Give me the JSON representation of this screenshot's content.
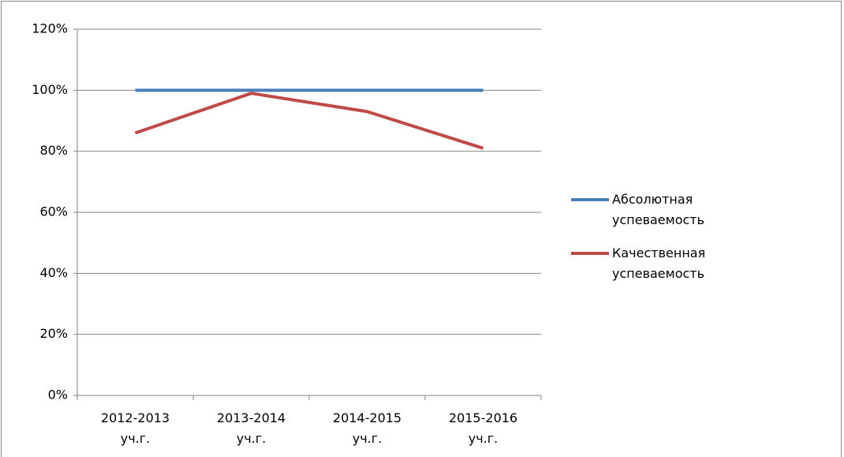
{
  "chart_data": {
    "type": "line",
    "categories": [
      "2012-2013 уч.г.",
      "2013-2014 уч.г.",
      "2014-2015 уч.г.",
      "2015-2016 уч.г."
    ],
    "series": [
      {
        "name": "Абсолютная успеваемость",
        "color": "#4a7ebb",
        "values": [
          100,
          100,
          100,
          100
        ]
      },
      {
        "name": "Качественная успеваемость",
        "color": "#be4b48",
        "values": [
          86,
          99,
          93,
          81
        ]
      }
    ],
    "ylim": [
      0,
      120
    ],
    "yticks": [
      {
        "value": 0,
        "label": "0%"
      },
      {
        "value": 20,
        "label": "20%"
      },
      {
        "value": 40,
        "label": "40%"
      },
      {
        "value": 60,
        "label": "60%"
      },
      {
        "value": 80,
        "label": "80%"
      },
      {
        "value": 100,
        "label": "100%"
      },
      {
        "value": 120,
        "label": "120%"
      }
    ],
    "grid": true,
    "legend": "right"
  }
}
